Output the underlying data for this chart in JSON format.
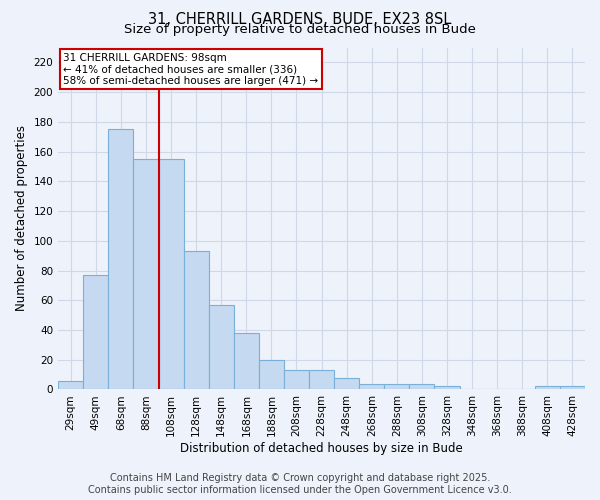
{
  "title_line1": "31, CHERRILL GARDENS, BUDE, EX23 8SL",
  "title_line2": "Size of property relative to detached houses in Bude",
  "xlabel": "Distribution of detached houses by size in Bude",
  "ylabel": "Number of detached properties",
  "bar_labels": [
    "29sqm",
    "49sqm",
    "68sqm",
    "88sqm",
    "108sqm",
    "128sqm",
    "148sqm",
    "168sqm",
    "188sqm",
    "208sqm",
    "228sqm",
    "248sqm",
    "268sqm",
    "288sqm",
    "308sqm",
    "328sqm",
    "348sqm",
    "368sqm",
    "388sqm",
    "408sqm",
    "428sqm"
  ],
  "bar_values": [
    6,
    77,
    175,
    155,
    155,
    93,
    57,
    38,
    20,
    13,
    13,
    8,
    4,
    4,
    4,
    2,
    0,
    0,
    0,
    2,
    2
  ],
  "bar_color": "#c5d9f0",
  "bar_edge_color": "#7ab0d8",
  "red_line_x": 3.5,
  "annotation_text": "31 CHERRILL GARDENS: 98sqm\n← 41% of detached houses are smaller (336)\n58% of semi-detached houses are larger (471) →",
  "annotation_box_color": "#ffffff",
  "annotation_box_edge": "#cc0000",
  "ylim": [
    0,
    230
  ],
  "yticks": [
    0,
    20,
    40,
    60,
    80,
    100,
    120,
    140,
    160,
    180,
    200,
    220
  ],
  "footer_line1": "Contains HM Land Registry data © Crown copyright and database right 2025.",
  "footer_line2": "Contains public sector information licensed under the Open Government Licence v3.0.",
  "bg_color": "#eef2fa",
  "grid_color": "#d0d8e8",
  "title_fontsize": 10.5,
  "subtitle_fontsize": 9.5,
  "axis_label_fontsize": 8.5,
  "tick_fontsize": 7.5,
  "annotation_fontsize": 7.5,
  "footer_fontsize": 7
}
